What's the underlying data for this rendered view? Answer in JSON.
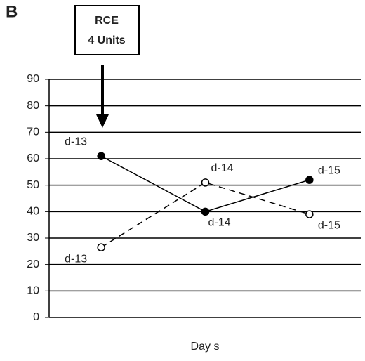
{
  "chart_data": {
    "type": "line",
    "panel_label": "B",
    "annotation": [
      "RCE",
      "4 Units"
    ],
    "x_label": "Day s",
    "categories": [
      "d-13",
      "d-14",
      "d-15"
    ],
    "series": [
      {
        "color": "#000000",
        "marker": "filled",
        "dash": "solid",
        "values": [
          61,
          40,
          52
        ]
      },
      {
        "color": "#000000",
        "marker": "open",
        "dash": "dashed",
        "values": [
          26.5,
          51,
          39
        ]
      }
    ],
    "ylim": [
      0,
      90
    ],
    "yticks": [
      0,
      10,
      20,
      30,
      40,
      50,
      60,
      70,
      80,
      90
    ],
    "grid": true
  }
}
